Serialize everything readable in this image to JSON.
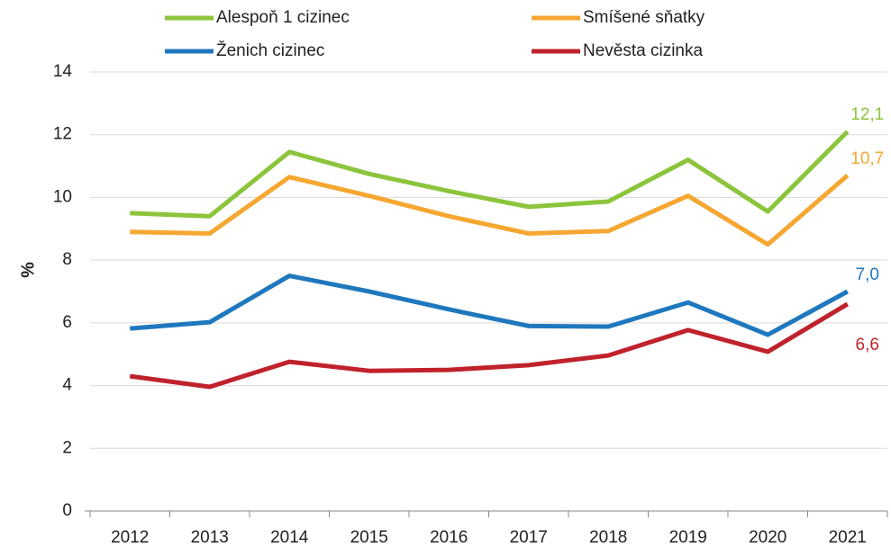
{
  "chart_data": {
    "type": "line",
    "y_label": "%",
    "categories": [
      "2012",
      "2013",
      "2014",
      "2015",
      "2016",
      "2017",
      "2018",
      "2019",
      "2020",
      "2021"
    ],
    "series": [
      {
        "name": "Alespoň 1 cizinec",
        "color": "#8cc43c",
        "values": [
          9.5,
          9.4,
          11.45,
          10.75,
          10.2,
          9.7,
          9.87,
          11.2,
          9.55,
          12.1
        ],
        "value_labels": [
          null,
          null,
          null,
          null,
          null,
          null,
          null,
          null,
          null,
          "12,1"
        ]
      },
      {
        "name": "Smíšené sňatky",
        "color": "#f5a731",
        "values": [
          8.9,
          8.85,
          10.65,
          10.05,
          9.4,
          8.85,
          8.93,
          10.05,
          8.5,
          10.7
        ],
        "value_labels": [
          null,
          null,
          null,
          null,
          null,
          null,
          null,
          null,
          null,
          "10,7"
        ]
      },
      {
        "name": "Ženich cizinec",
        "color": "#1f78be",
        "values": [
          5.82,
          6.02,
          7.5,
          7.0,
          6.43,
          5.9,
          5.88,
          6.65,
          5.62,
          7.0
        ],
        "value_labels": [
          null,
          null,
          null,
          null,
          null,
          null,
          null,
          null,
          null,
          "7,0"
        ]
      },
      {
        "name": "Nevěsta cizinka",
        "color": "#c0222c",
        "values": [
          4.3,
          3.96,
          4.76,
          4.47,
          4.5,
          4.65,
          4.96,
          5.77,
          5.08,
          6.6
        ],
        "value_labels": [
          null,
          null,
          null,
          null,
          null,
          null,
          null,
          null,
          null,
          "6,6"
        ]
      }
    ],
    "ylim": [
      0,
      14
    ],
    "yticks": [
      0,
      2,
      4,
      6,
      8,
      10,
      12,
      14
    ],
    "grid": true
  }
}
